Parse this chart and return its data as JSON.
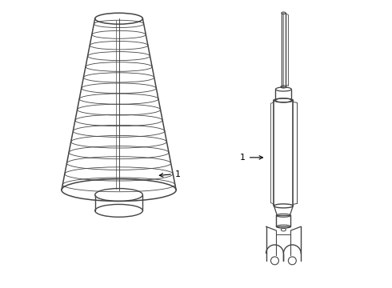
{
  "bg_color": "#ffffff",
  "line_color": "#444444",
  "label_color": "#000000",
  "fig_width": 4.9,
  "fig_height": 3.6,
  "dpi": 100,
  "label1_text": "1",
  "label2_text": "1"
}
